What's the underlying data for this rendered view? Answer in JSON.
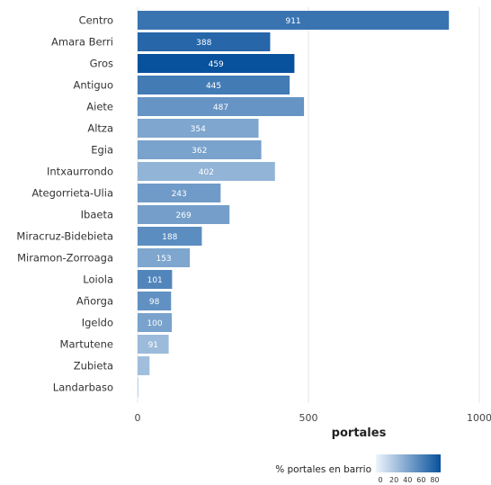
{
  "chart_data": {
    "type": "bar",
    "orientation": "horizontal",
    "categories": [
      "Centro",
      "Amara Berri",
      "Gros",
      "Antiguo",
      "Aiete",
      "Altza",
      "Egia",
      "Intxaurrondo",
      "Ategorrieta-Ulia",
      "Ibaeta",
      "Miracruz-Bidebieta",
      "Miramon-Zorroaga",
      "Loiola",
      "Añorga",
      "Igeldo",
      "Martutene",
      "Zubieta",
      "Landarbaso"
    ],
    "values": [
      911,
      388,
      459,
      445,
      487,
      354,
      362,
      402,
      243,
      269,
      188,
      153,
      101,
      98,
      100,
      91,
      35,
      3
    ],
    "value_labels": [
      "911",
      "388",
      "459",
      "445",
      "487",
      "354",
      "362",
      "402",
      "243",
      "269",
      "188",
      "153",
      "101",
      "98",
      "100",
      "91",
      "",
      ""
    ],
    "pct_portales_en_barrio": [
      70,
      78,
      92,
      66,
      52,
      42,
      44,
      34,
      48,
      46,
      56,
      42,
      60,
      54,
      44,
      30,
      28,
      15
    ],
    "xlabel": "portales",
    "xlim": [
      0,
      1000
    ],
    "xticks": [
      "0",
      "500",
      "1000"
    ],
    "legend": {
      "title": "% portales en barrio",
      "ticks": [
        "0",
        "20",
        "40",
        "60",
        "80"
      ],
      "range": [
        0,
        90
      ],
      "color_low": "#e6f0fa",
      "color_high": "#08519c",
      "position": "bottom-right"
    },
    "grid": "vertical"
  }
}
